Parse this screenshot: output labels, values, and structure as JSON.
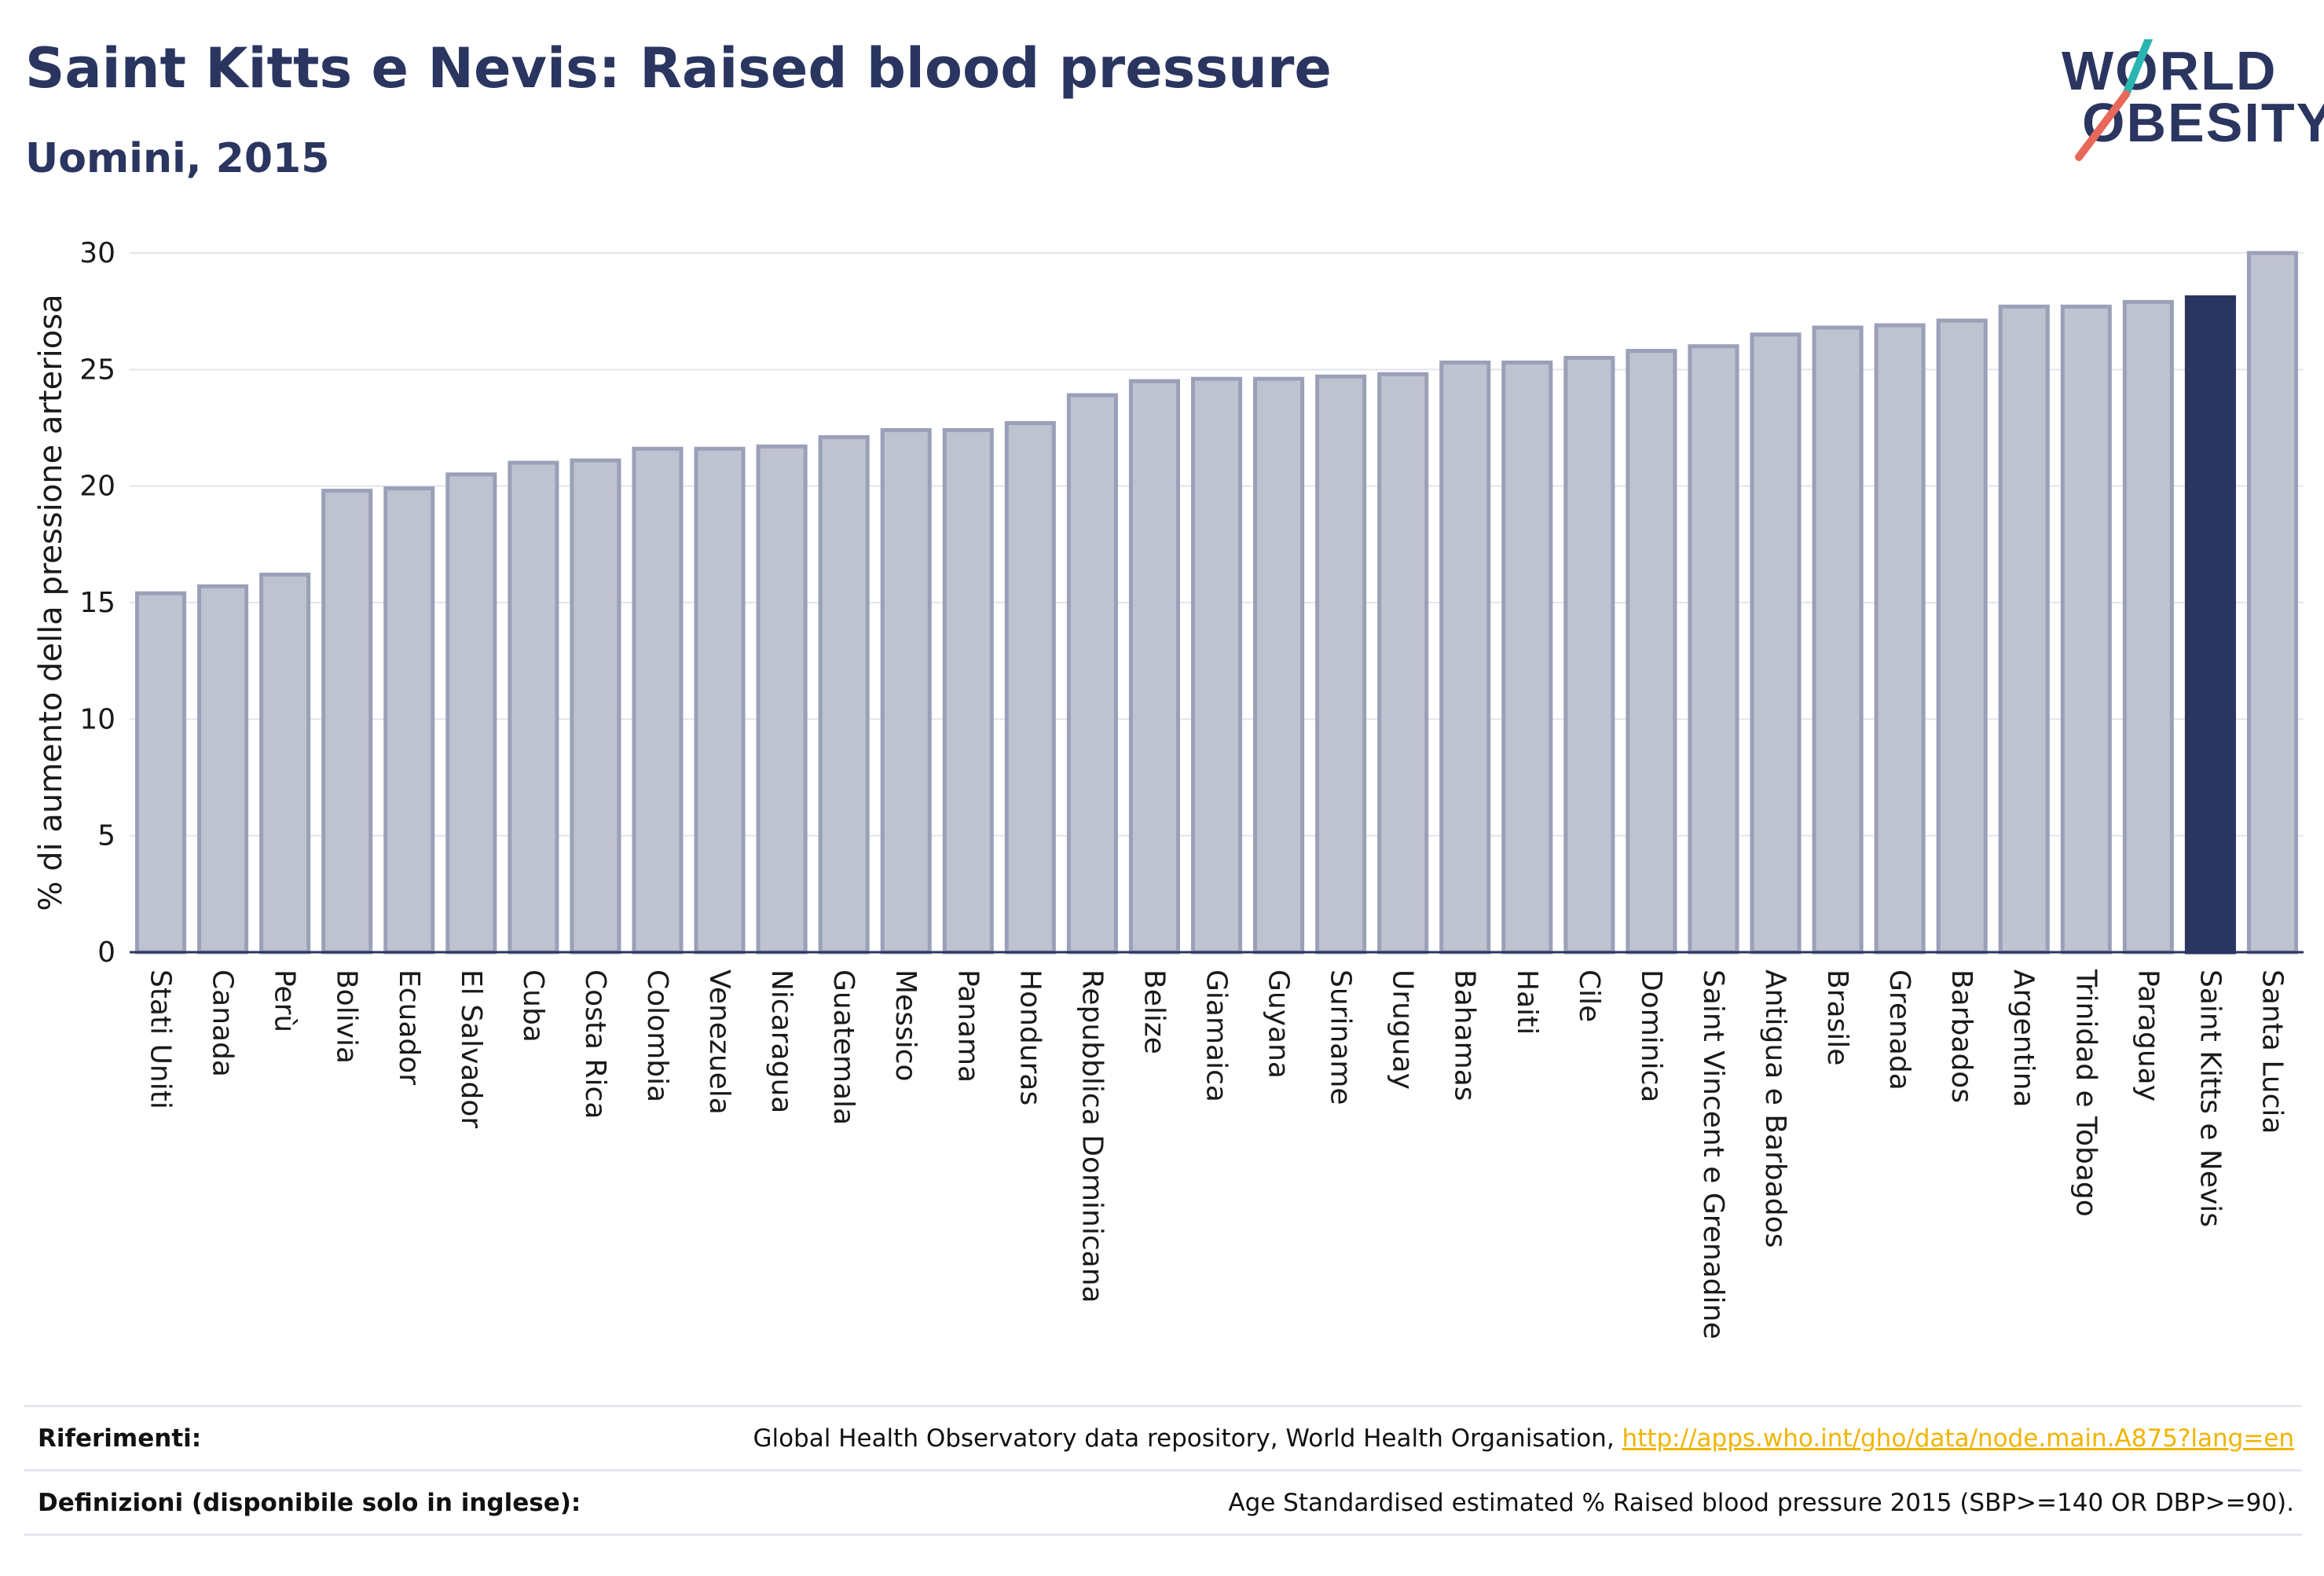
{
  "header": {
    "title": "Saint Kitts e Nevis: Raised blood pressure",
    "subtitle": "Uomini, 2015"
  },
  "logo": {
    "line1": "WORLD",
    "line2": "OBESITY",
    "colors": {
      "text": "#2a3560",
      "slash_top": "#2ab5b0",
      "slash_bottom": "#e8685a"
    }
  },
  "colors": {
    "bar": "#bfc2cf",
    "bar_border": "#9aa0b8",
    "highlight": "#2a3560",
    "grid": "#e3e5ec",
    "axis": "#2a3560"
  },
  "chart_data": {
    "type": "bar",
    "ylabel": "% di aumento della pressione arteriosa",
    "ylim": [
      0,
      30
    ],
    "yticks": [
      0,
      5,
      10,
      15,
      20,
      25,
      30
    ],
    "grid": true,
    "highlight": "Saint Kitts e Nevis",
    "categories": [
      "Stati Uniti",
      "Canada",
      "Perù",
      "Bolivia",
      "Ecuador",
      "El Salvador",
      "Cuba",
      "Costa Rica",
      "Colombia",
      "Venezuela",
      "Nicaragua",
      "Guatemala",
      "Messico",
      "Panama",
      "Honduras",
      "Repubblica Dominicana",
      "Belize",
      "Giamaica",
      "Guyana",
      "Suriname",
      "Uruguay",
      "Bahamas",
      "Haiti",
      "Cile",
      "Dominica",
      "Saint Vincent e Grenadine",
      "Antigua e Barbados",
      "Brasile",
      "Grenada",
      "Barbados",
      "Argentina",
      "Trinidad e Tobago",
      "Paraguay",
      "Saint Kitts e Nevis",
      "Santa Lucia"
    ],
    "values": [
      15.4,
      15.7,
      16.2,
      19.8,
      19.9,
      20.5,
      21.0,
      21.1,
      21.6,
      21.6,
      21.7,
      22.1,
      22.4,
      22.4,
      22.7,
      23.9,
      24.5,
      24.6,
      24.6,
      24.7,
      24.8,
      25.3,
      25.3,
      25.5,
      25.8,
      26.0,
      26.5,
      26.8,
      26.9,
      27.1,
      27.7,
      27.7,
      27.9,
      28.1,
      30.0
    ]
  },
  "footer": {
    "references_label": "Riferimenti:",
    "references_text": "Global Health Observatory data repository, World Health Organisation, ",
    "references_link": "http://apps.who.int/gho/data/node.main.A875?lang=en",
    "definitions_label": "Definizioni (disponibile solo in inglese):",
    "definitions_text": "Age Standardised estimated % Raised blood pressure 2015 (SBP>=140 OR DBP>=90)."
  }
}
